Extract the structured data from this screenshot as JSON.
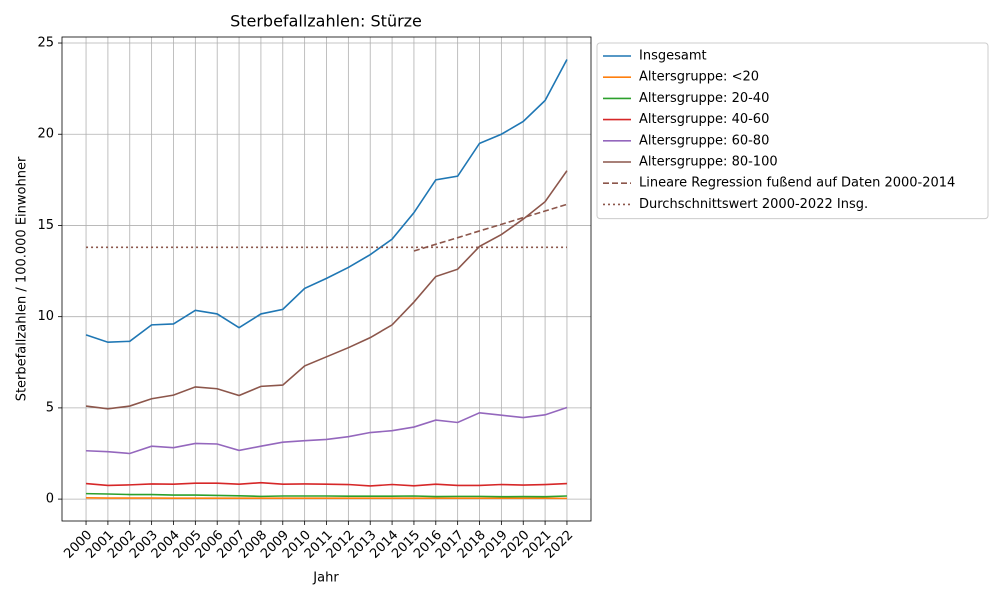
{
  "chart_data": {
    "type": "line",
    "title": "Sterbefallzahlen: Stürze",
    "xlabel": "Jahr",
    "ylabel": "Sterbefallzahlen / 100.000 Einwohner",
    "x": [
      2000,
      2001,
      2002,
      2003,
      2004,
      2005,
      2006,
      2007,
      2008,
      2009,
      2010,
      2011,
      2012,
      2013,
      2014,
      2015,
      2016,
      2017,
      2018,
      2019,
      2020,
      2021,
      2022
    ],
    "xlim": [
      1998.9,
      2023.1
    ],
    "xticks": [
      2000,
      2001,
      2002,
      2003,
      2004,
      2005,
      2006,
      2007,
      2008,
      2009,
      2010,
      2011,
      2012,
      2013,
      2014,
      2015,
      2016,
      2017,
      2018,
      2019,
      2020,
      2021,
      2022
    ],
    "ylim": [
      -1.2,
      25.33
    ],
    "yticks": [
      0,
      5,
      10,
      15,
      20,
      25
    ],
    "grid": true,
    "legend": "outside upper right",
    "series": [
      {
        "name": "Insgesamt",
        "color": "#1f77b4",
        "style": "solid",
        "values": [
          9.0,
          8.6,
          8.65,
          9.55,
          9.6,
          10.35,
          10.15,
          9.4,
          10.15,
          10.4,
          11.55,
          12.1,
          12.7,
          13.4,
          14.25,
          15.7,
          17.5,
          17.7,
          19.5,
          20.0,
          20.7,
          21.85,
          24.1
        ]
      },
      {
        "name": "Altersgruppe: <20",
        "color": "#ff7f0e",
        "style": "solid",
        "values": [
          0.07,
          0.06,
          0.06,
          0.06,
          0.05,
          0.05,
          0.05,
          0.05,
          0.05,
          0.05,
          0.05,
          0.05,
          0.05,
          0.05,
          0.05,
          0.05,
          0.05,
          0.05,
          0.05,
          0.05,
          0.05,
          0.05,
          0.04
        ]
      },
      {
        "name": "Altersgruppe: 20-40",
        "color": "#2ca02c",
        "style": "solid",
        "values": [
          0.3,
          0.28,
          0.25,
          0.25,
          0.22,
          0.22,
          0.2,
          0.18,
          0.15,
          0.17,
          0.17,
          0.17,
          0.16,
          0.16,
          0.16,
          0.17,
          0.14,
          0.15,
          0.15,
          0.13,
          0.14,
          0.13,
          0.17
        ]
      },
      {
        "name": "Altersgruppe: 40-60",
        "color": "#d62728",
        "style": "solid",
        "values": [
          0.85,
          0.75,
          0.78,
          0.83,
          0.82,
          0.87,
          0.87,
          0.82,
          0.9,
          0.82,
          0.83,
          0.82,
          0.8,
          0.72,
          0.8,
          0.73,
          0.82,
          0.75,
          0.75,
          0.8,
          0.77,
          0.8,
          0.85
        ]
      },
      {
        "name": "Altersgruppe: 60-80",
        "color": "#9467bd",
        "style": "solid",
        "values": [
          2.65,
          2.6,
          2.5,
          2.9,
          2.82,
          3.05,
          3.02,
          2.67,
          2.9,
          3.12,
          3.2,
          3.27,
          3.42,
          3.65,
          3.75,
          3.95,
          4.33,
          4.2,
          4.73,
          4.6,
          4.47,
          4.62,
          5.02
        ]
      },
      {
        "name": "Altersgruppe: 80-100",
        "color": "#8c564b",
        "style": "solid",
        "values": [
          5.1,
          4.95,
          5.1,
          5.5,
          5.7,
          6.15,
          6.05,
          5.68,
          6.18,
          6.25,
          7.3,
          7.8,
          8.3,
          8.85,
          9.55,
          10.8,
          12.2,
          12.6,
          13.85,
          14.5,
          15.35,
          16.3,
          18.0
        ]
      },
      {
        "name": "Lineare Regression fußend auf Daten 2000-2014",
        "color": "#8c564b",
        "style": "dashed",
        "values": [
          null,
          null,
          null,
          null,
          null,
          null,
          null,
          null,
          null,
          null,
          null,
          null,
          null,
          null,
          null,
          13.6,
          13.97,
          14.33,
          14.7,
          15.06,
          15.43,
          15.79,
          16.16
        ]
      },
      {
        "name": "Durchschnittswert 2000-2022 Insg.",
        "color": "#8c564b",
        "style": "dotted",
        "values": [
          13.8,
          13.8,
          13.8,
          13.8,
          13.8,
          13.8,
          13.8,
          13.8,
          13.8,
          13.8,
          13.8,
          13.8,
          13.8,
          13.8,
          13.8,
          13.8,
          13.8,
          13.8,
          13.8,
          13.8,
          13.8,
          13.8,
          13.8
        ]
      }
    ]
  }
}
